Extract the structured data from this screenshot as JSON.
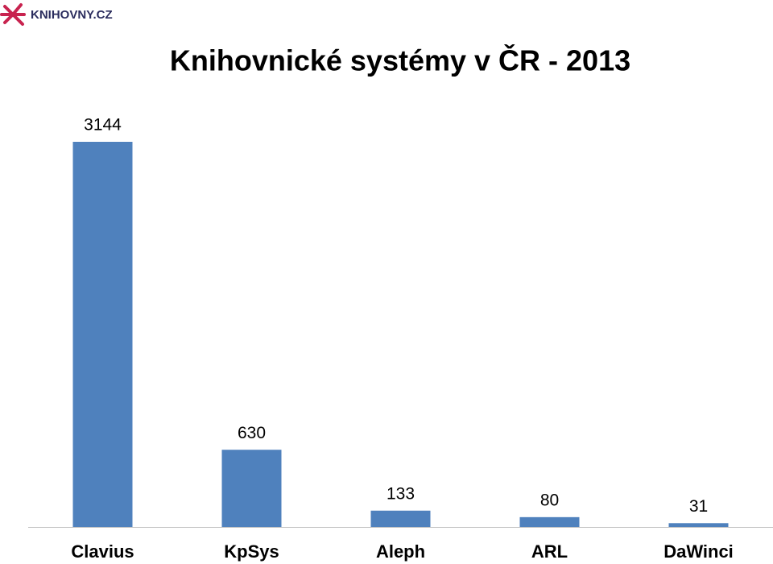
{
  "logo": "KNIHOVNY.CZ",
  "chart_data": {
    "type": "bar",
    "title": "Knihovnické systémy v ČR - 2013",
    "categories": [
      "Clavius",
      "KpSys",
      "Aleph",
      "ARL",
      "DaWinci"
    ],
    "values": [
      3144,
      630,
      133,
      80,
      31
    ],
    "color": "#4f81bd"
  }
}
